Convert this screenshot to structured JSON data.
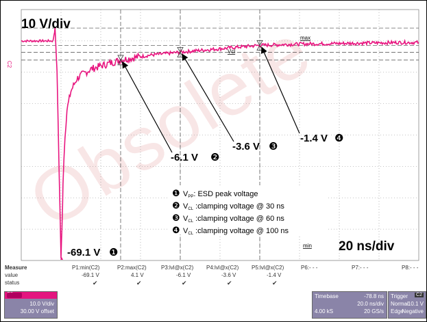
{
  "watermark": "Obsolete",
  "scale_labels": {
    "vertical": "10 V/div",
    "horizontal": "20 ns/div"
  },
  "annotations": {
    "vpp": "-69.1 V",
    "v30": "-6.1 V",
    "v60": "-3.6 V",
    "v100": "-1.4 V",
    "marker_max": "max",
    "marker_min": "min",
    "marker_vcl": "Vcl",
    "marker_c2": "C2",
    "markers": [
      "❶",
      "❷",
      "❸",
      "❹"
    ]
  },
  "legend": [
    {
      "num": "❶",
      "sym": "V",
      "sub": "PP",
      "text": ": ESD peak voltage"
    },
    {
      "num": "❷",
      "sym": "V",
      "sub": "CL",
      "text": " :clamping voltage @ 30 ns"
    },
    {
      "num": "❸",
      "sym": "V",
      "sub": "CL",
      "text": " :clamping voltage @ 60 ns"
    },
    {
      "num": "❹",
      "sym": "V",
      "sub": "CL",
      "text": " :clamping voltage @ 100 ns"
    }
  ],
  "measure": {
    "row_labels": [
      "Measure",
      "value",
      "status"
    ],
    "params": [
      {
        "name": "P1:min(C2)",
        "value": "-69.1 V",
        "status": "✔"
      },
      {
        "name": "P2:max(C2)",
        "value": "4.1 V",
        "status": "✔"
      },
      {
        "name": "P3:lvl@x(C2)",
        "value": "-6.1 V",
        "status": "✔"
      },
      {
        "name": "P4:lvl@x(C2)",
        "value": "-3.6 V",
        "status": "✔"
      },
      {
        "name": "P5:lvl@x(C2)",
        "value": "-1.4 V",
        "status": "✔"
      },
      {
        "name": "P6:- - -",
        "value": "",
        "status": ""
      },
      {
        "name": "P7:- - -",
        "value": "",
        "status": ""
      },
      {
        "name": "P8:- - -",
        "value": "",
        "status": ""
      }
    ]
  },
  "channel_box": {
    "ch": "C2",
    "scale": "10.0 V/div",
    "offset": "30.00 V offset"
  },
  "timebase_box": {
    "title": "Timebase",
    "delay": "-78.8 ns",
    "tdiv": "20.0 ns/div",
    "samples": "4.00 kS",
    "rate": "20 GS/s"
  },
  "trigger_box": {
    "title": "Trigger",
    "tag": "C2",
    "mode": "Normal",
    "level": "-10.1 V",
    "type": "Edge",
    "slope": "Negative"
  },
  "colors": {
    "trace": "#e8157f",
    "panel": "#8a84a8",
    "grid": "#888888"
  },
  "chart_data": {
    "type": "line",
    "x_unit": "ns",
    "y_unit": "V",
    "xlim": [
      -20,
      180
    ],
    "ylim": [
      -70,
      10
    ],
    "grid": true,
    "x": [
      -20,
      -10,
      -4,
      -3.5,
      -3,
      -2,
      -1,
      0,
      0.5,
      1,
      2,
      3,
      5,
      8,
      10,
      15,
      20,
      25,
      30,
      35,
      40,
      45,
      50,
      55,
      60,
      70,
      80,
      90,
      100,
      110,
      120,
      130,
      140,
      150,
      160,
      170,
      180
    ],
    "y": [
      0,
      0,
      0,
      2,
      4,
      -10,
      -40,
      -69.1,
      -60,
      -45,
      -30,
      -22,
      -16,
      -12,
      -11,
      -9,
      -8,
      -7,
      -6.1,
      -5.5,
      -5,
      -4.5,
      -4.2,
      -3.9,
      -3.6,
      -3.0,
      -2.5,
      -1.9,
      -1.4,
      -1.2,
      -1.0,
      -0.9,
      -0.8,
      -0.7,
      -0.6,
      -0.5,
      -0.5
    ],
    "points": [
      {
        "label": "-69.1 V",
        "x": 0,
        "y": -69.1
      },
      {
        "label": "-6.1 V",
        "x": 30,
        "y": -6.1
      },
      {
        "label": "-3.6 V",
        "x": 60,
        "y": -3.6
      },
      {
        "label": "-1.4 V",
        "x": 100,
        "y": -1.4
      }
    ]
  }
}
